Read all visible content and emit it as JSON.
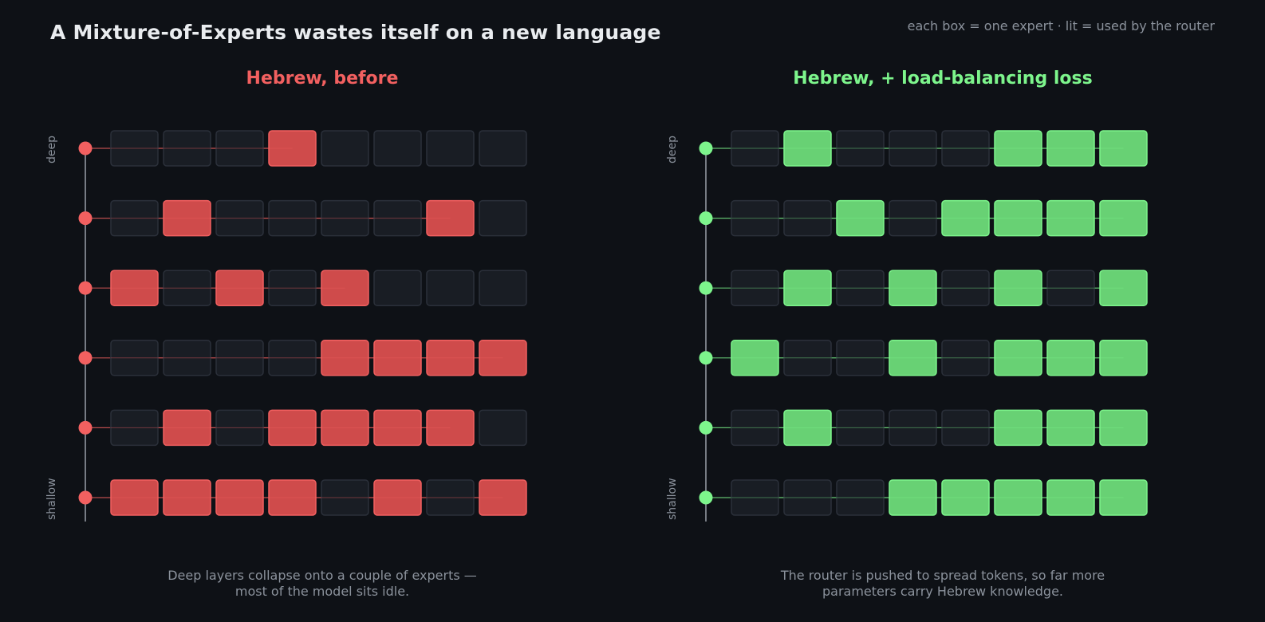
{
  "title": "A Mixture-of-Experts wastes itself on a new language",
  "legend_note": "each box = one expert · lit = used by the router",
  "colors": {
    "background": "#0e1116",
    "box_off_fill": "#1a1e26",
    "box_off_stroke": "#2b303a",
    "axis": "#9aa0a8",
    "left_accent": "#f26060",
    "left_fill": "#cf4b4b",
    "right_accent": "#7df58c",
    "right_fill": "#68d174"
  },
  "panels": [
    {
      "title": "Hebrew, before",
      "color_key": "left",
      "axis_top": "deep",
      "axis_bottom": "shallow",
      "caption_line1": "Deep layers collapse onto a couple of experts —",
      "caption_line2": "most of the model sits idle.",
      "layers": [
        [
          0,
          0,
          0,
          1,
          0,
          0,
          0,
          0
        ],
        [
          0,
          1,
          0,
          0,
          0,
          0,
          1,
          0
        ],
        [
          1,
          0,
          1,
          0,
          1,
          0,
          0,
          0
        ],
        [
          0,
          0,
          0,
          0,
          1,
          1,
          1,
          1
        ],
        [
          0,
          1,
          0,
          1,
          1,
          1,
          1,
          0
        ],
        [
          1,
          1,
          1,
          1,
          0,
          1,
          0,
          1
        ]
      ]
    },
    {
      "title": "Hebrew, + load-balancing loss",
      "color_key": "right",
      "axis_top": "deep",
      "axis_bottom": "shallow",
      "caption_line1": "The router is pushed to spread tokens, so far more",
      "caption_line2": "parameters carry Hebrew knowledge.",
      "layers": [
        [
          0,
          1,
          0,
          0,
          0,
          1,
          1,
          1
        ],
        [
          0,
          0,
          1,
          0,
          1,
          1,
          1,
          1
        ],
        [
          0,
          1,
          0,
          1,
          0,
          1,
          0,
          1
        ],
        [
          1,
          0,
          0,
          1,
          0,
          1,
          1,
          1
        ],
        [
          0,
          1,
          0,
          0,
          0,
          1,
          1,
          1
        ],
        [
          0,
          0,
          0,
          1,
          1,
          1,
          1,
          1
        ]
      ]
    }
  ]
}
